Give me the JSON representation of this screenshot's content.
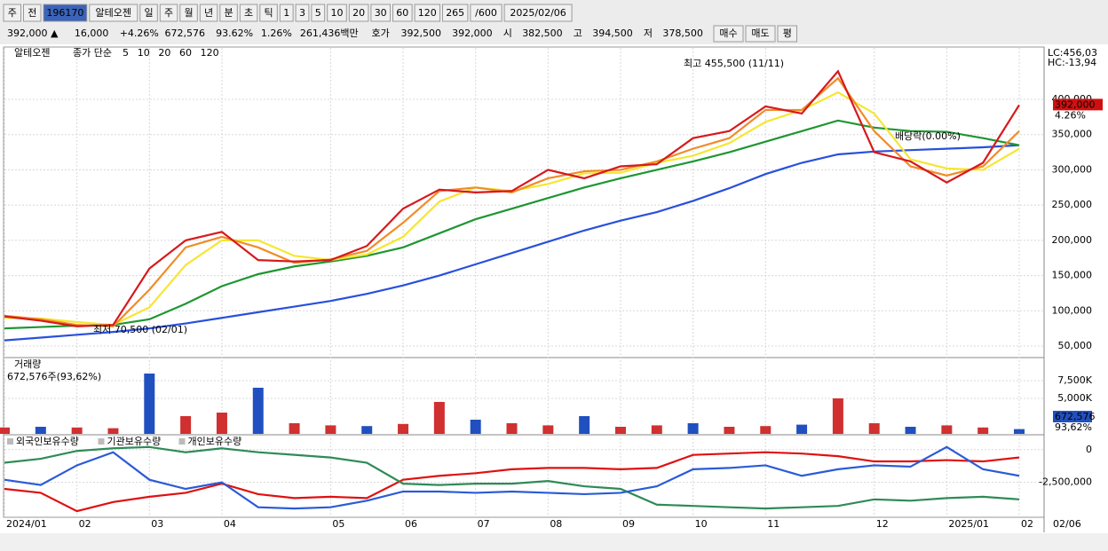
{
  "toolbar": {
    "items": [
      "주",
      "전",
      "196170",
      "알테오젠",
      "일",
      "주",
      "월",
      "년",
      "분",
      "초",
      "틱",
      "1",
      "3",
      "5",
      "10",
      "20",
      "30",
      "60",
      "120",
      "265",
      "/600",
      "2025/02/06"
    ]
  },
  "quote": {
    "items": [
      "392,000 ▲",
      "16,000",
      "+4.26%",
      "672,576",
      "93.62%",
      "1.26%",
      "261,436백만",
      "호가",
      "392,500",
      "392,000",
      "시",
      "382,500",
      "고",
      "394,500",
      "저",
      "378,500"
    ],
    "buttons": [
      "매수",
      "매도",
      "평"
    ]
  },
  "chart_data": [
    {
      "type": "line",
      "title": "알테오젠",
      "legend_prefix": "종가 단순",
      "categories": [
        "2024/01",
        null,
        "02",
        null,
        "03",
        null,
        "04",
        null,
        null,
        "05",
        null,
        "06",
        null,
        "07",
        null,
        "08",
        null,
        "09",
        null,
        "10",
        null,
        "11",
        null,
        null,
        "12",
        null,
        "2025/01",
        null,
        "02"
      ],
      "series": [
        {
          "name": "5",
          "color": "#d7191c",
          "values": [
            92000,
            86000,
            78000,
            80000,
            160000,
            200000,
            212000,
            172000,
            170000,
            172000,
            192000,
            245000,
            272000,
            268000,
            270000,
            300000,
            288000,
            305000,
            308000,
            345000,
            355000,
            390000,
            380000,
            440000,
            325000,
            312000,
            282000,
            310000,
            392000
          ]
        },
        {
          "name": "10",
          "color": "#f08c28",
          "values": [
            93000,
            88000,
            80000,
            78000,
            130000,
            190000,
            205000,
            190000,
            168000,
            173000,
            185000,
            225000,
            270000,
            275000,
            268000,
            288000,
            298000,
            300000,
            312000,
            330000,
            345000,
            385000,
            385000,
            430000,
            355000,
            305000,
            292000,
            305000,
            355000
          ]
        },
        {
          "name": "20",
          "color": "#f5e632",
          "values": [
            90000,
            89000,
            84000,
            80000,
            105000,
            165000,
            200000,
            200000,
            178000,
            172000,
            180000,
            205000,
            255000,
            275000,
            270000,
            280000,
            295000,
            296000,
            310000,
            320000,
            338000,
            368000,
            385000,
            410000,
            380000,
            315000,
            302000,
            300000,
            330000
          ]
        },
        {
          "name": "60",
          "color": "#1e9632",
          "values": [
            75000,
            77000,
            79000,
            80000,
            88000,
            110000,
            135000,
            152000,
            163000,
            170000,
            178000,
            190000,
            210000,
            230000,
            245000,
            260000,
            275000,
            288000,
            300000,
            312000,
            325000,
            340000,
            355000,
            370000,
            360000,
            355000,
            354000,
            345000,
            335000
          ]
        },
        {
          "name": "120",
          "color": "#2850dc",
          "values": [
            58000,
            62000,
            66000,
            70000,
            75000,
            82000,
            90000,
            98000,
            106000,
            114000,
            124000,
            136000,
            150000,
            166000,
            182000,
            198000,
            214000,
            228000,
            240000,
            256000,
            274000,
            294000,
            310000,
            322000,
            326000,
            328000,
            330000,
            332000,
            335000
          ]
        }
      ],
      "ylim": [
        34900,
        471800
      ],
      "yticks": [
        {
          "value": 50000,
          "label": "50,000"
        },
        {
          "value": 100000,
          "label": "100,000"
        },
        {
          "value": 150000,
          "label": "150,000"
        },
        {
          "value": 200000,
          "label": "200,000"
        },
        {
          "value": 250000,
          "label": "250,000"
        },
        {
          "value": 300000,
          "label": "300,000"
        },
        {
          "value": 350000,
          "label": "350,000"
        },
        {
          "value": 400000,
          "label": "400,000"
        }
      ],
      "grid": true,
      "annotations": {
        "high": "최고 455,500 (11/11)",
        "low": "최저 70,500 (02/01)",
        "dividend": "배당락(0.00%)",
        "lc": "LC:456,03",
        "hc": "HC:-13,94",
        "price_tag": "392,000",
        "change_tag": "4.26%"
      },
      "x_end_label": "02/06"
    },
    {
      "type": "bar",
      "title": "거래량",
      "subtitle": "672,576주(93,62%)",
      "color": "#d03030",
      "values": [
        900,
        1000,
        900,
        800,
        8500,
        2500,
        3000,
        6500,
        1500,
        1200,
        1100,
        1400,
        4500,
        2000,
        1500,
        1200,
        2500,
        1000,
        1200,
        1500,
        1000,
        1100,
        1300,
        5000,
        1500,
        1000,
        1200,
        900,
        672.576
      ],
      "ylim": [
        0,
        10000
      ],
      "yticks": [
        {
          "value": 5000,
          "label": "5,000K"
        },
        {
          "value": 7500,
          "label": "7,500K"
        }
      ],
      "annotations": {
        "last_volume": "672,576",
        "last_ratio": "93,62%"
      }
    },
    {
      "type": "line",
      "series": [
        {
          "name": "외국인보유수량",
          "color": "#e01010",
          "values": [
            -3000000,
            -3300000,
            -4700000,
            -4000000,
            -3600000,
            -3300000,
            -2600000,
            -3400000,
            -3700000,
            -3600000,
            -3700000,
            -2300000,
            -2000000,
            -1800000,
            -1500000,
            -1400000,
            -1400000,
            -1500000,
            -1400000,
            -400000,
            -300000,
            -200000,
            -300000,
            -500000,
            -900000,
            -900000,
            -800000,
            -900000,
            -600000
          ]
        },
        {
          "name": "기관보유수량",
          "color": "#2e8b57",
          "values": [
            -1000000,
            -700000,
            -100000,
            100000,
            200000,
            -200000,
            100000,
            -200000,
            -400000,
            -600000,
            -1000000,
            -2600000,
            -2700000,
            -2600000,
            -2600000,
            -2400000,
            -2800000,
            -3000000,
            -4200000,
            -4300000,
            -4400000,
            -4500000,
            -4400000,
            -4300000,
            -3800000,
            -3900000,
            -3700000,
            -3600000,
            -3800000
          ]
        },
        {
          "name": "개인보유수량",
          "color": "#2a5bd7",
          "values": [
            -2300000,
            -2700000,
            -1200000,
            -200000,
            -2300000,
            -3000000,
            -2500000,
            -4400000,
            -4500000,
            -4400000,
            -3900000,
            -3200000,
            -3200000,
            -3300000,
            -3200000,
            -3300000,
            -3400000,
            -3300000,
            -2800000,
            -1500000,
            -1400000,
            -1200000,
            -2000000,
            -1500000,
            -1200000,
            -1300000,
            200000,
            -1500000,
            -2000000
          ]
        }
      ],
      "ylim": [
        -5100000,
        1000000
      ],
      "yticks": [
        0,
        {
          "value": -2500000,
          "label": "-2,500,000"
        }
      ]
    }
  ]
}
